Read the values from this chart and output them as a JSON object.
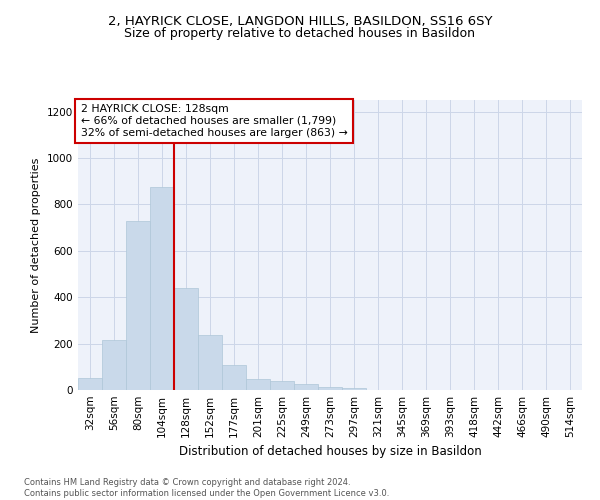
{
  "title1": "2, HAYRICK CLOSE, LANGDON HILLS, BASILDON, SS16 6SY",
  "title2": "Size of property relative to detached houses in Basildon",
  "xlabel": "Distribution of detached houses by size in Basildon",
  "ylabel": "Number of detached properties",
  "footnote": "Contains HM Land Registry data © Crown copyright and database right 2024.\nContains public sector information licensed under the Open Government Licence v3.0.",
  "annotation_line1": "2 HAYRICK CLOSE: 128sqm",
  "annotation_line2": "← 66% of detached houses are smaller (1,799)",
  "annotation_line3": "32% of semi-detached houses are larger (863) →",
  "bar_color": "#c9d9ea",
  "bar_edge_color": "#aec6d8",
  "marker_color": "#cc0000",
  "categories": [
    "32sqm",
    "56sqm",
    "80sqm",
    "104sqm",
    "128sqm",
    "152sqm",
    "177sqm",
    "201sqm",
    "225sqm",
    "249sqm",
    "273sqm",
    "297sqm",
    "321sqm",
    "345sqm",
    "369sqm",
    "393sqm",
    "418sqm",
    "442sqm",
    "466sqm",
    "490sqm",
    "514sqm"
  ],
  "values": [
    50,
    215,
    730,
    875,
    440,
    235,
    108,
    47,
    38,
    27,
    15,
    10,
    0,
    0,
    0,
    0,
    0,
    0,
    0,
    0,
    0
  ],
  "ylim": [
    0,
    1250
  ],
  "yticks": [
    0,
    200,
    400,
    600,
    800,
    1000,
    1200
  ],
  "grid_color": "#ccd6e8",
  "bg_color": "#eef2fa",
  "title1_fontsize": 9.5,
  "title2_fontsize": 9,
  "xlabel_fontsize": 8.5,
  "ylabel_fontsize": 8,
  "annotation_fontsize": 7.8,
  "tick_fontsize": 7.5,
  "footnote_fontsize": 6.0
}
